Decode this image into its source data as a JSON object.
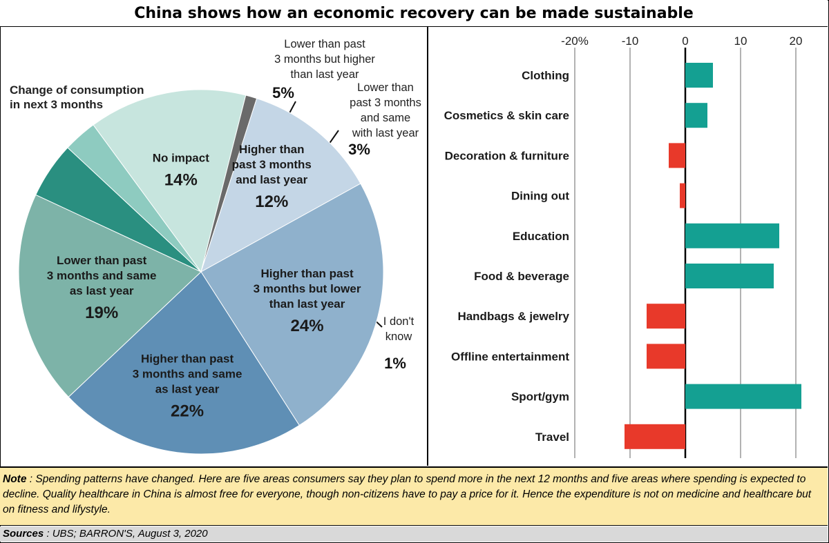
{
  "title": "China shows how an economic recovery can be made sustainable",
  "chart_data": [
    {
      "type": "pie",
      "title": "Change of consumption in next 3 months",
      "title_lines": [
        "Change of consumption",
        "in next 3 months"
      ],
      "slices": [
        {
          "label": "Lower than past 3 months but higher than last year",
          "label_lines": [
            "Lower than past",
            "3 months but higher",
            "than last year"
          ],
          "value": 5,
          "value_label": "5%",
          "color": "#2a8f80"
        },
        {
          "label": "Lower than past 3 months and same with last year",
          "label_lines": [
            "Lower than",
            "past 3 months",
            "and same",
            "with last year"
          ],
          "value": 3,
          "value_label": "3%",
          "color": "#8ecbc0"
        },
        {
          "label": "No impact",
          "label_lines": [
            "No impact"
          ],
          "value": 14,
          "value_label": "14%",
          "color": "#c7e5de"
        },
        {
          "label": "I don't know",
          "label_lines": [
            "I don't",
            "know"
          ],
          "value": 1,
          "value_label": "1%",
          "color": "#6a6a6a"
        },
        {
          "label": "Higher than past 3 months and last year",
          "label_lines": [
            "Higher than",
            "past 3 months",
            "and last year"
          ],
          "value": 12,
          "value_label": "12%",
          "color": "#c4d6e6"
        },
        {
          "label": "Higher than past 3 months but lower than last year",
          "label_lines": [
            "Higher than past",
            "3 months but lower",
            "than last year"
          ],
          "value": 24,
          "value_label": "24%",
          "color": "#8fb1cc"
        },
        {
          "label": "Higher than past 3 months and same as last year",
          "label_lines": [
            "Higher than past",
            "3 months and same",
            "as last year"
          ],
          "value": 22,
          "value_label": "22%",
          "color": "#5f8fb5"
        },
        {
          "label": "Lower than past 3 months and same as last year",
          "label_lines": [
            "Lower than past",
            "3 months and same",
            "as last year"
          ],
          "value": 19,
          "value_label": "19%",
          "color": "#7db3a8"
        }
      ]
    },
    {
      "type": "bar",
      "orientation": "horizontal",
      "categories": [
        "Clothing",
        "Cosmetics & skin care",
        "Decoration & furniture",
        "Dining out",
        "Education",
        "Food & beverage",
        "Handbags & jewelry",
        "Offline entertainment",
        "Sport/gym",
        "Travel"
      ],
      "values": [
        5,
        4,
        -3,
        -1,
        17,
        16,
        -7,
        -7,
        21,
        -11
      ],
      "xlim": [
        -20,
        20
      ],
      "xticks": [
        -20,
        -10,
        0,
        10,
        20
      ],
      "xtick_labels": [
        "-20%",
        "-10",
        "0",
        "10",
        "20"
      ],
      "positive_color": "#14a092",
      "negative_color": "#e8392a",
      "grid": true
    }
  ],
  "note": {
    "label": "Note",
    "text": " : Spending patterns have changed. Here are five areas consumers say they plan to spend more in the next 12 months and five areas where spending is expected to decline.  Quality healthcare in China is almost free for everyone, though non-citizens have to pay a price for it.  Hence the expenditure is not on medicine and healthcare but on fitness and lifystyle."
  },
  "sources": {
    "label": "Sources",
    "text": " : UBS; BARRON'S, August 3, 2020"
  }
}
